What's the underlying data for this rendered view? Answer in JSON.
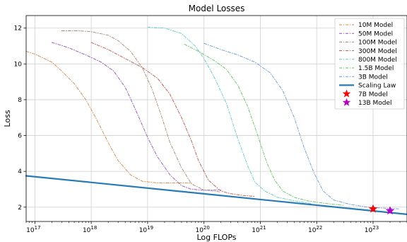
{
  "chart_data": {
    "type": "line",
    "title": "Model Losses",
    "xlabel": "Log FLOPs",
    "ylabel": "Loss",
    "xscale": "log",
    "xlim": [
      7e+16,
      4e+23
    ],
    "ylim": [
      1.2,
      12.7
    ],
    "grid": true,
    "legend_position": "top-right",
    "x_tick_values": [
      1e+17,
      1e+18,
      1e+19,
      1e+20,
      1e+21,
      1e+22,
      1e+23
    ],
    "x_ticks": [
      {
        "base": "10",
        "exp": "17"
      },
      {
        "base": "10",
        "exp": "18"
      },
      {
        "base": "10",
        "exp": "19"
      },
      {
        "base": "10",
        "exp": "20"
      },
      {
        "base": "10",
        "exp": "21"
      },
      {
        "base": "10",
        "exp": "22"
      },
      {
        "base": "10",
        "exp": "23"
      }
    ],
    "y_ticks": [
      "2",
      "4",
      "6",
      "8",
      "10",
      "12"
    ],
    "y_tick_values": [
      2,
      4,
      6,
      8,
      10,
      12
    ],
    "series": [
      {
        "name": "10M Model",
        "color": "#d08a4b",
        "style": "dashdot",
        "points": [
          [
            7e+16,
            10.7
          ],
          [
            1e+17,
            10.55
          ],
          [
            2e+17,
            10.1
          ],
          [
            3e+17,
            9.6
          ],
          [
            5e+17,
            8.9
          ],
          [
            8e+17,
            8.0
          ],
          [
            1.2e+18,
            7.0
          ],
          [
            2e+18,
            5.6
          ],
          [
            3e+18,
            4.6
          ],
          [
            5e+18,
            3.8
          ],
          [
            8e+18,
            3.45
          ],
          [
            1.5e+19,
            3.35
          ],
          [
            3e+19,
            3.35
          ],
          [
            6e+19,
            3.35
          ]
        ]
      },
      {
        "name": "50M Model",
        "color": "#8f4fc4",
        "style": "dashdot",
        "points": [
          [
            2e+17,
            11.2
          ],
          [
            4e+17,
            10.9
          ],
          [
            8e+17,
            10.5
          ],
          [
            1.5e+18,
            10.1
          ],
          [
            2.5e+18,
            9.6
          ],
          [
            4e+18,
            8.7
          ],
          [
            6e+18,
            7.5
          ],
          [
            1e+19,
            5.9
          ],
          [
            1.5e+19,
            4.8
          ],
          [
            2.5e+19,
            3.8
          ],
          [
            4e+19,
            3.2
          ],
          [
            6e+19,
            3.0
          ],
          [
            1e+20,
            2.95
          ],
          [
            2e+20,
            2.95
          ]
        ]
      },
      {
        "name": "100M Model",
        "color": "#a08a78",
        "style": "dashdot",
        "points": [
          [
            3e+17,
            11.85
          ],
          [
            6e+17,
            11.85
          ],
          [
            1e+18,
            11.8
          ],
          [
            2e+18,
            11.6
          ],
          [
            3e+18,
            11.3
          ],
          [
            5e+18,
            10.7
          ],
          [
            8e+18,
            9.8
          ],
          [
            1.2e+19,
            8.6
          ],
          [
            1.8e+19,
            7.0
          ],
          [
            2.5e+19,
            5.6
          ],
          [
            4e+19,
            4.2
          ],
          [
            6e+19,
            3.3
          ],
          [
            1e+20,
            2.95
          ],
          [
            1.5e+20,
            2.9
          ],
          [
            2e+20,
            2.85
          ]
        ]
      },
      {
        "name": "300M Model",
        "color": "#b7564e",
        "style": "dashdot",
        "points": [
          [
            1e+18,
            11.2
          ],
          [
            2e+18,
            10.8
          ],
          [
            4e+18,
            10.3
          ],
          [
            8e+18,
            9.8
          ],
          [
            1.5e+19,
            9.2
          ],
          [
            2.5e+19,
            8.3
          ],
          [
            4e+19,
            7.0
          ],
          [
            6e+19,
            5.7
          ],
          [
            8e+19,
            4.6
          ],
          [
            1.2e+20,
            3.5
          ],
          [
            2e+20,
            2.9
          ],
          [
            3e+20,
            2.75
          ],
          [
            5e+20,
            2.65
          ],
          [
            8e+20,
            2.6
          ]
        ]
      },
      {
        "name": "800M Model",
        "color": "#5ec7d1",
        "style": "dashdot",
        "points": [
          [
            1e+19,
            12.05
          ],
          [
            2e+19,
            12.0
          ],
          [
            4e+19,
            11.7
          ],
          [
            7e+19,
            11.0
          ],
          [
            1e+20,
            10.3
          ],
          [
            1.5e+20,
            9.3
          ],
          [
            2.5e+20,
            7.8
          ],
          [
            4e+20,
            5.8
          ],
          [
            6e+20,
            4.3
          ],
          [
            8e+20,
            3.4
          ],
          [
            1.2e+21,
            2.9
          ],
          [
            2e+21,
            2.55
          ],
          [
            4e+21,
            2.35
          ],
          [
            8e+21,
            2.2
          ]
        ]
      },
      {
        "name": "1.5B Model",
        "color": "#63c263",
        "style": "dashdot",
        "points": [
          [
            4.5e+19,
            11.1
          ],
          [
            8e+19,
            10.7
          ],
          [
            1.5e+20,
            10.2
          ],
          [
            2.5e+20,
            9.7
          ],
          [
            4e+20,
            8.8
          ],
          [
            6e+20,
            7.6
          ],
          [
            9e+20,
            6.0
          ],
          [
            1.3e+21,
            4.5
          ],
          [
            1.8e+21,
            3.5
          ],
          [
            2.5e+21,
            2.9
          ],
          [
            4e+21,
            2.55
          ],
          [
            7e+21,
            2.35
          ],
          [
            1.5e+22,
            2.2
          ],
          [
            3e+22,
            2.1
          ]
        ]
      },
      {
        "name": "3B Model",
        "color": "#6b9ad2",
        "style": "dashdot",
        "points": [
          [
            1e+20,
            11.15
          ],
          [
            2e+20,
            10.8
          ],
          [
            4e+20,
            10.5
          ],
          [
            8e+20,
            10.1
          ],
          [
            1.5e+21,
            9.5
          ],
          [
            2.5e+21,
            8.5
          ],
          [
            4e+21,
            7.0
          ],
          [
            6e+21,
            5.3
          ],
          [
            9e+21,
            3.9
          ],
          [
            1.3e+22,
            2.9
          ],
          [
            2e+22,
            2.4
          ],
          [
            4e+22,
            2.15
          ],
          [
            8e+22,
            2.0
          ],
          [
            1.5e+23,
            1.95
          ],
          [
            3e+23,
            1.9
          ]
        ]
      },
      {
        "name": "Scaling Law",
        "color": "#2a7bb4",
        "style": "solid",
        "points": [
          [
            7e+16,
            3.75
          ],
          [
            4e+23,
            1.6
          ]
        ]
      }
    ],
    "markers": [
      {
        "name": "7B Model",
        "x": 1e+23,
        "y": 1.9,
        "color": "#ff0000",
        "symbol": "star"
      },
      {
        "name": "13B Model",
        "x": 2e+23,
        "y": 1.8,
        "color": "#b100c9",
        "symbol": "star"
      }
    ],
    "legend": [
      {
        "label": "10M Model"
      },
      {
        "label": "50M Model"
      },
      {
        "label": "100M Model"
      },
      {
        "label": "300M Model"
      },
      {
        "label": "800M Model"
      },
      {
        "label": "1.5B Model"
      },
      {
        "label": "3B Model"
      },
      {
        "label": "Scaling Law"
      },
      {
        "label": "7B Model"
      },
      {
        "label": "13B Model"
      }
    ]
  }
}
